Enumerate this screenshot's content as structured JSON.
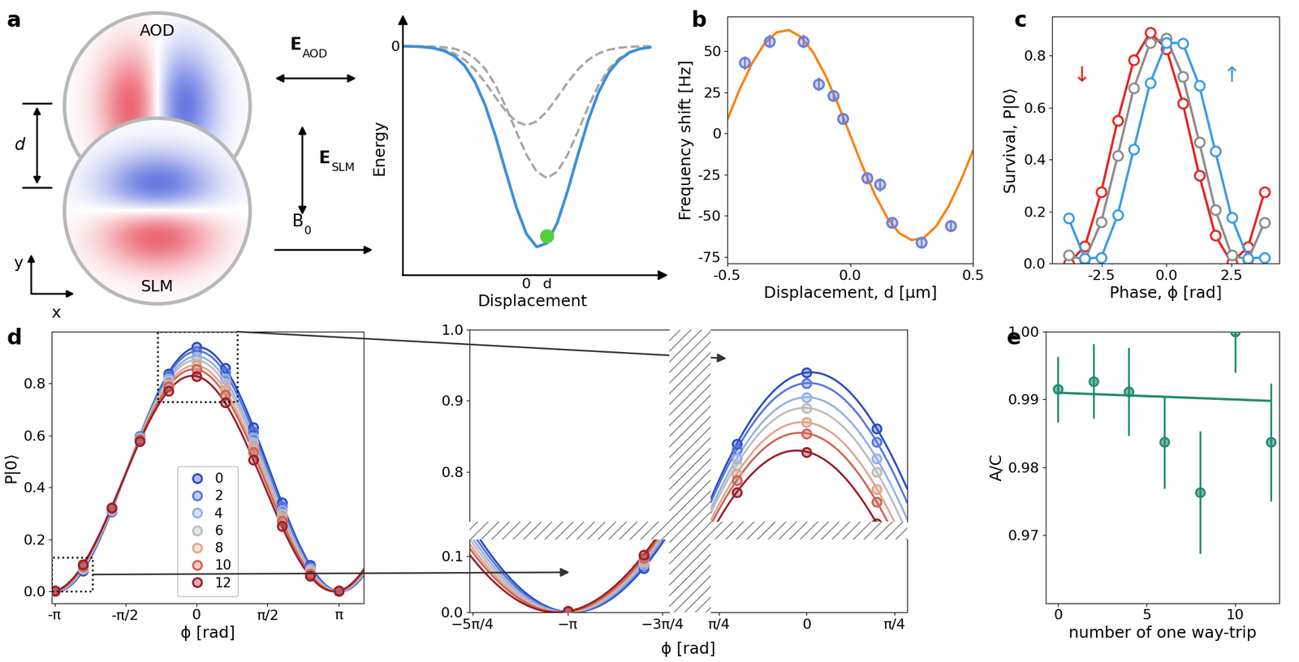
{
  "diagram": {
    "panel": "a",
    "beams": [
      {
        "name": "AOD"
      },
      {
        "name": "SLM"
      }
    ],
    "separation_label": "d",
    "axes_labels": {
      "x": "x",
      "y": "y"
    },
    "fields": [
      {
        "symbol": "E",
        "subscript": "AOD"
      },
      {
        "symbol": "E",
        "subscript": "SLM"
      },
      {
        "symbol": "B",
        "subscript": "0"
      }
    ]
  },
  "chart_data": [
    {
      "type": "line",
      "xlabel": "Displacement",
      "ylabel": "Energy",
      "x": [
        -3,
        -2.75,
        -2.5,
        -2.25,
        -2,
        -1.75,
        -1.5,
        -1.25,
        -1,
        -0.75,
        -0.5,
        -0.25,
        0,
        0.25,
        0.5,
        0.75,
        1,
        1.25,
        1.5,
        1.75,
        2,
        2.25,
        2.5,
        2.75,
        3
      ],
      "series": [
        {
          "color": "#a6a6a6",
          "line_style": "dashed",
          "values": [
            0.0,
            -0.001,
            -0.003,
            -0.009,
            -0.02,
            -0.041,
            -0.077,
            -0.133,
            -0.206,
            -0.29,
            -0.37,
            -0.428,
            -0.45,
            -0.428,
            -0.37,
            -0.29,
            -0.206,
            -0.133,
            -0.077,
            -0.041,
            -0.02,
            -0.009,
            -0.003,
            -0.001,
            0.0
          ]
        },
        {
          "color": "#a6a6a6",
          "line_style": "dashed",
          "values": [
            0.0,
            0.0,
            -0.001,
            -0.002,
            -0.006,
            -0.014,
            -0.033,
            -0.069,
            -0.129,
            -0.221,
            -0.344,
            -0.484,
            -0.617,
            -0.714,
            -0.75,
            -0.714,
            -0.617,
            -0.484,
            -0.344,
            -0.221,
            -0.129,
            -0.069,
            -0.033,
            -0.014,
            -0.006
          ]
        },
        {
          "color": "#3d8fd9",
          "line_style": "solid",
          "values": [
            0.0,
            -0.001,
            -0.004,
            -0.011,
            -0.026,
            -0.055,
            -0.11,
            -0.202,
            -0.335,
            -0.511,
            -0.714,
            -0.912,
            -1.067,
            -1.142,
            -1.12,
            -1.004,
            -0.823,
            -0.617,
            -0.421,
            -0.262,
            -0.149,
            -0.078,
            -0.036,
            -0.015,
            -0.006
          ]
        }
      ],
      "point": {
        "x": 0.5,
        "y": -1.08,
        "color": "#4fd13a"
      },
      "xlim": [
        -3.0,
        3.3
      ],
      "ylim": [
        -1.3,
        0.15
      ],
      "xticks": [
        0,
        {
          "value": 0.5,
          "label": "d"
        }
      ],
      "yticks": [
        0
      ]
    },
    {
      "type": "scatter",
      "panel": "b",
      "xlabel": "Displacement, d [μm]",
      "ylabel": "Frequency shift [Hz]",
      "x": [
        -0.43,
        -0.33,
        -0.19,
        -0.13,
        -0.07,
        -0.03,
        0.07,
        0.12,
        0.17,
        0.29,
        0.41
      ],
      "values": [
        43,
        56,
        56,
        30,
        23,
        9,
        -27,
        -31,
        -54,
        -66,
        -56
      ],
      "errors": [
        4,
        4,
        4,
        4,
        3,
        3,
        3,
        4,
        3,
        3,
        3
      ],
      "color": "#6f7fd6",
      "marker": "o",
      "fit": {
        "color": "#ff7f0e",
        "x": [
          -0.5,
          -0.45,
          -0.4,
          -0.35,
          -0.3,
          -0.25,
          -0.2,
          -0.15,
          -0.1,
          -0.05,
          0.0,
          0.05,
          0.1,
          0.15,
          0.2,
          0.25,
          0.3,
          0.35,
          0.4,
          0.45,
          0.5
        ],
        "values": [
          8.5,
          26.8,
          42.5,
          54.4,
          61.4,
          62.8,
          58.6,
          49.0,
          35.0,
          17.9,
          -1.0,
          -19.9,
          -37.0,
          -51.0,
          -60.6,
          -64.8,
          -63.4,
          -56.4,
          -44.5,
          -28.8,
          -10.5
        ]
      },
      "xlim": [
        -0.5,
        0.5
      ],
      "ylim": [
        -79,
        71
      ],
      "xticks": [
        -0.5,
        0.0,
        0.5
      ],
      "yticks": [
        -75,
        -50,
        -25,
        0,
        25,
        50
      ]
    },
    {
      "type": "line",
      "panel": "c",
      "xlabel": "Phase, ϕ [rad]",
      "ylabel": "Survival, P|0⟩",
      "x": [
        -3.77,
        -3.14,
        -2.51,
        -1.88,
        -1.26,
        -0.63,
        0.0,
        0.63,
        1.26,
        1.88,
        2.51,
        3.14,
        3.77
      ],
      "series": [
        {
          "color": "#e8231f",
          "marker": "o",
          "values": [
            0.001,
            0.066,
            0.276,
            0.551,
            0.782,
            0.889,
            0.825,
            0.615,
            0.34,
            0.108,
            0.002,
            0.065,
            0.274
          ]
        },
        {
          "color": "#8c8c8c",
          "marker": "o",
          "values": [
            0.031,
            0.014,
            0.16,
            0.414,
            0.674,
            0.849,
            0.866,
            0.72,
            0.467,
            0.206,
            0.032,
            0.014,
            0.158
          ]
        },
        {
          "color": "#3a9ae8",
          "marker": "o",
          "values": [
            0.174,
            0.019,
            0.023,
            0.186,
            0.44,
            0.695,
            0.85,
            0.847,
            0.685,
            0.431,
            0.176,
            0.02,
            0.023
          ]
        }
      ],
      "annotations": [
        {
          "text": "↓",
          "color": "#e8231f"
        },
        {
          "text": "↑",
          "color": "#3a9ae8"
        }
      ],
      "xlim": [
        -4.4,
        4.35
      ],
      "ylim": [
        0.0,
        0.95
      ],
      "xticks": [
        -2.5,
        0.0,
        2.5
      ],
      "yticks": [
        0.0,
        0.2,
        0.4,
        0.6,
        0.8
      ]
    },
    {
      "type": "line",
      "panel": "d",
      "xlabel": "ϕ [rad]",
      "ylabel": "P|0⟩",
      "legend": "lower center",
      "x": [
        -3.14159,
        -2.51327,
        -1.88496,
        -1.25664,
        -0.62832,
        0.0,
        0.62832,
        1.25664,
        1.88496,
        2.51327,
        3.14159
      ],
      "series": [
        {
          "name": "0",
          "color": "#2a4cc4",
          "marker": "o",
          "fit": {
            "amplitude": 0.94,
            "phase": 0.04
          },
          "values": [
            0.0,
            0.079,
            0.307,
            0.597,
            0.839,
            0.94,
            0.861,
            0.633,
            0.343,
            0.101,
            0.0
          ]
        },
        {
          "name": "2",
          "color": "#5577dd",
          "marker": "o",
          "fit": {
            "amplitude": 0.925,
            "phase": 0.02
          },
          "values": [
            0.0,
            0.083,
            0.311,
            0.597,
            0.831,
            0.925,
            0.842,
            0.614,
            0.328,
            0.094,
            0.0
          ]
        },
        {
          "name": "4",
          "color": "#93b0ea",
          "marker": "o",
          "fit": {
            "amplitude": 0.905,
            "phase": 0.0
          },
          "values": [
            0.0,
            0.086,
            0.313,
            0.592,
            0.819,
            0.905,
            0.819,
            0.592,
            0.313,
            0.086,
            0.0
          ]
        },
        {
          "name": "6",
          "color": "#bdbdbd",
          "marker": "o",
          "fit": {
            "amplitude": 0.89,
            "phase": -0.02
          },
          "values": [
            0.0,
            0.09,
            0.316,
            0.591,
            0.81,
            0.89,
            0.8,
            0.574,
            0.299,
            0.08,
            0.0
          ]
        },
        {
          "name": "8",
          "color": "#e3a58e",
          "marker": "o",
          "fit": {
            "amplitude": 0.87,
            "phase": -0.04
          },
          "values": [
            0.0,
            0.094,
            0.317,
            0.586,
            0.797,
            0.87,
            0.776,
            0.553,
            0.284,
            0.073,
            0.0
          ]
        },
        {
          "name": "10",
          "color": "#cc6457",
          "marker": "o",
          "fit": {
            "amplitude": 0.855,
            "phase": -0.06
          },
          "values": [
            0.001,
            0.097,
            0.32,
            0.584,
            0.788,
            0.854,
            0.758,
            0.535,
            0.271,
            0.067,
            0.001
          ]
        },
        {
          "name": "12",
          "color": "#9a1f27",
          "marker": "o",
          "fit": {
            "amplitude": 0.83,
            "phase": -0.09
          },
          "values": [
            0.002,
            0.103,
            0.323,
            0.578,
            0.771,
            0.828,
            0.727,
            0.507,
            0.252,
            0.059,
            0.002
          ]
        }
      ],
      "xlim": [
        -3.2,
        3.7
      ],
      "ylim": [
        -0.045,
        1.0
      ],
      "xticks": [
        {
          "value": -3.14159,
          "label": "-π"
        },
        {
          "value": -1.5708,
          "label": "-π/2"
        },
        0,
        {
          "value": 1.5708,
          "label": "π/2"
        },
        {
          "value": 3.14159,
          "label": "π"
        }
      ],
      "yticks": [
        0.0,
        0.2,
        0.4,
        0.6,
        0.8
      ],
      "zoom": {
        "xlabel": "ϕ [rad]",
        "low": {
          "xlim": [
            -3.95,
            -2.3
          ],
          "ylim": [
            0.0,
            0.13
          ],
          "xticks": [
            {
              "value": -3.92699,
              "label": "−5π/4"
            },
            {
              "value": -3.14159,
              "label": "−π"
            },
            {
              "value": -2.35619,
              "label": "−3π/4"
            }
          ],
          "yticks": [
            0.0,
            0.1
          ]
        },
        "high": {
          "xlim": [
            -0.86,
            0.9
          ],
          "ylim": [
            0.73,
            1.0
          ],
          "xticks": [
            {
              "value": -0.7854,
              "label": "π/4"
            },
            0,
            {
              "value": 0.7854,
              "label": "π/4"
            }
          ],
          "yticks": [
            0.8,
            0.9,
            1.0
          ]
        }
      }
    },
    {
      "type": "scatter",
      "panel": "e",
      "xlabel": "number of one way-trip",
      "ylabel": "A/C",
      "x": [
        0,
        2,
        4,
        6,
        8,
        10,
        12
      ],
      "values": [
        0.9915,
        0.9927,
        0.9912,
        0.9837,
        0.9763,
        1.0,
        0.9837
      ],
      "errors": [
        0.0048,
        0.0055,
        0.0065,
        0.0068,
        0.009,
        0.006,
        0.0087
      ],
      "color": "#1f8a70",
      "marker": "o",
      "fit": {
        "x": [
          0,
          12
        ],
        "values": [
          0.991,
          0.9898
        ]
      },
      "xlim": [
        -0.7,
        12.5
      ],
      "ylim": [
        0.96,
        1.0
      ],
      "xticks": [
        0,
        5,
        10
      ],
      "yticks": [
        0.97,
        0.98,
        0.99,
        {
          "value": 1.0,
          "label": "1.00"
        }
      ]
    }
  ]
}
